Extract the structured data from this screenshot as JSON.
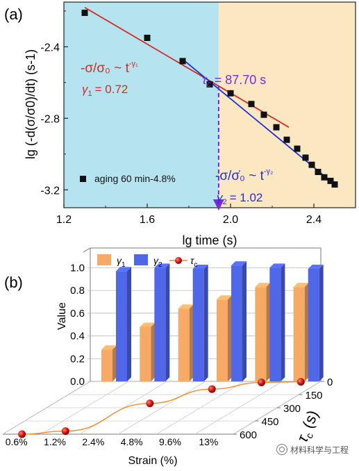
{
  "panel_a": {
    "label": "(a)",
    "formula1": "-σ/σ₀ ~ t",
    "formula1_exp": "-γ₁",
    "gamma1_text": "= 0.72",
    "tau_text": "= 87.70 s",
    "formula2": "-σ/σ̇₀ ~ t",
    "formula2_exp": "-γ₂",
    "gamma2_text": "= 1.02",
    "legend": "aging 60 min-4.8%",
    "colors": {
      "left_bg": "#b5e3f0",
      "right_bg": "#fbe8c3",
      "fit1": "#d42a24",
      "fit2": "#1e2fd6",
      "tau_line": "#7a2bd6",
      "marker": "#111111"
    }
  },
  "panel_b": {
    "label": "(b)",
    "colors": {
      "gamma1": "#f6aa66",
      "gamma2": "#5067ea",
      "tau": "#d91a12",
      "tau_line": "#f08a2a"
    }
  },
  "watermark": "材料科学与工程",
  "chart_data": [
    {
      "type": "scatter",
      "xlabel": "lg time (s)",
      "ylabel": "lg (-d(σ/σ0)/dt) (s-1)",
      "xlim": [
        1.2,
        2.6
      ],
      "ylim": [
        -3.3,
        -2.15
      ],
      "xticks": [
        "1.2",
        "1.6",
        "2.0",
        "2.4"
      ],
      "yticks": [
        "-2.4",
        "-2.8",
        "-3.2"
      ],
      "series": [
        {
          "name": "aging 60 min-4.8%",
          "x": [
            1.3,
            1.6,
            1.77,
            1.9,
            2.0,
            2.1,
            2.16,
            2.22,
            2.27,
            2.32,
            2.36,
            2.39,
            2.42,
            2.45,
            2.48,
            2.5
          ],
          "y": [
            -2.21,
            -2.35,
            -2.48,
            -2.61,
            -2.66,
            -2.72,
            -2.78,
            -2.85,
            -2.92,
            -2.97,
            -3.02,
            -3.06,
            -3.1,
            -3.13,
            -3.15,
            -3.17
          ]
        }
      ],
      "fits": [
        {
          "x": [
            1.3,
            2.28
          ],
          "y": [
            -2.18,
            -2.85
          ]
        },
        {
          "x": [
            1.77,
            2.5
          ],
          "y": [
            -2.47,
            -3.17
          ]
        }
      ],
      "tau_c_lg": 1.943,
      "tau_c": 87.7,
      "annotations": [
        "-σ/σ0 ~ t-γ1",
        "γ1 = 0.72",
        "τc = 87.70 s",
        "-σ/σ0 ~ t-γ2",
        "γ2 = 1.02"
      ]
    },
    {
      "type": "bar",
      "categories": [
        "0.6%",
        "1.2%",
        "2.4%",
        "4.8%",
        "9.6%",
        "13%"
      ],
      "xlabel": "Strain (%)",
      "ylabel": "Value",
      "ylim": [
        0,
        1.1
      ],
      "yticks": [
        "0.0",
        "0.2",
        "0.4",
        "0.6",
        "0.8",
        "1.0"
      ],
      "series": [
        {
          "name": "γ1",
          "values": [
            0.28,
            0.48,
            0.64,
            0.72,
            0.83,
            0.83
          ]
        },
        {
          "name": "γ2",
          "values": [
            0.97,
            1.0,
            0.99,
            1.02,
            1.0,
            0.99
          ]
        },
        {
          "name": "τc",
          "axis": "τc (s)",
          "values": [
            640,
            565,
            250,
            87.7,
            12,
            5
          ]
        }
      ],
      "tau_axis": {
        "label": "τc (s)",
        "ticks": [
          "0",
          "150",
          "300",
          "450",
          "600"
        ],
        "range": [
          0,
          600
        ]
      }
    }
  ]
}
